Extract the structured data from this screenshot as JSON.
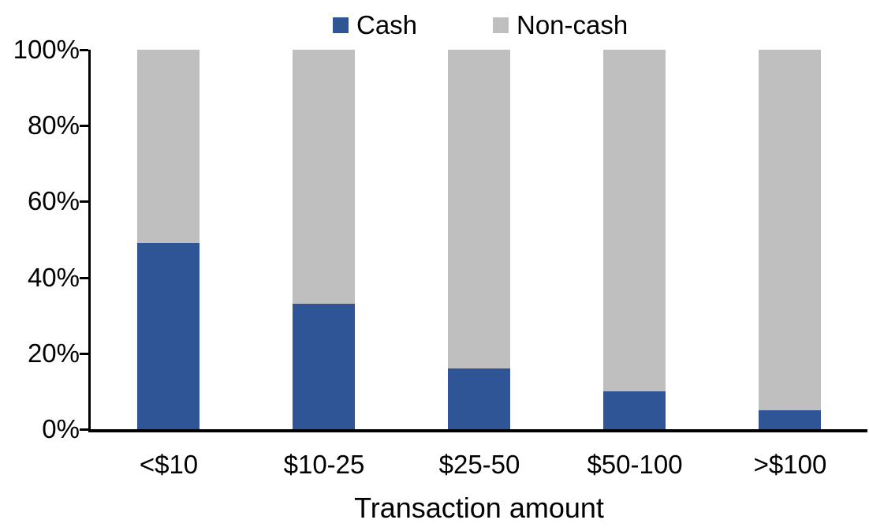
{
  "chart_data": {
    "type": "bar",
    "stacked": true,
    "orientation": "vertical",
    "title": "",
    "xlabel": "Transaction amount",
    "ylabel": "",
    "categories": [
      "<$10",
      "$10-25",
      "$25-50",
      "$50-100",
      ">$100"
    ],
    "series": [
      {
        "name": "Cash",
        "color": "#2F5597",
        "values": [
          49,
          33,
          16,
          10,
          5
        ]
      },
      {
        "name": "Non-cash",
        "color": "#BFBFBF",
        "values": [
          51,
          67,
          84,
          90,
          95
        ]
      }
    ],
    "y_axis": {
      "min": 0,
      "max": 100,
      "tick_step": 20,
      "tick_labels": [
        "0%",
        "20%",
        "40%",
        "60%",
        "80%",
        "100%"
      ]
    },
    "legend": {
      "position": "top",
      "items": [
        "Cash",
        "Non-cash"
      ]
    },
    "grid": false,
    "colors": {
      "axis": "#000000",
      "text": "#000000",
      "background": "#FFFFFF"
    }
  }
}
